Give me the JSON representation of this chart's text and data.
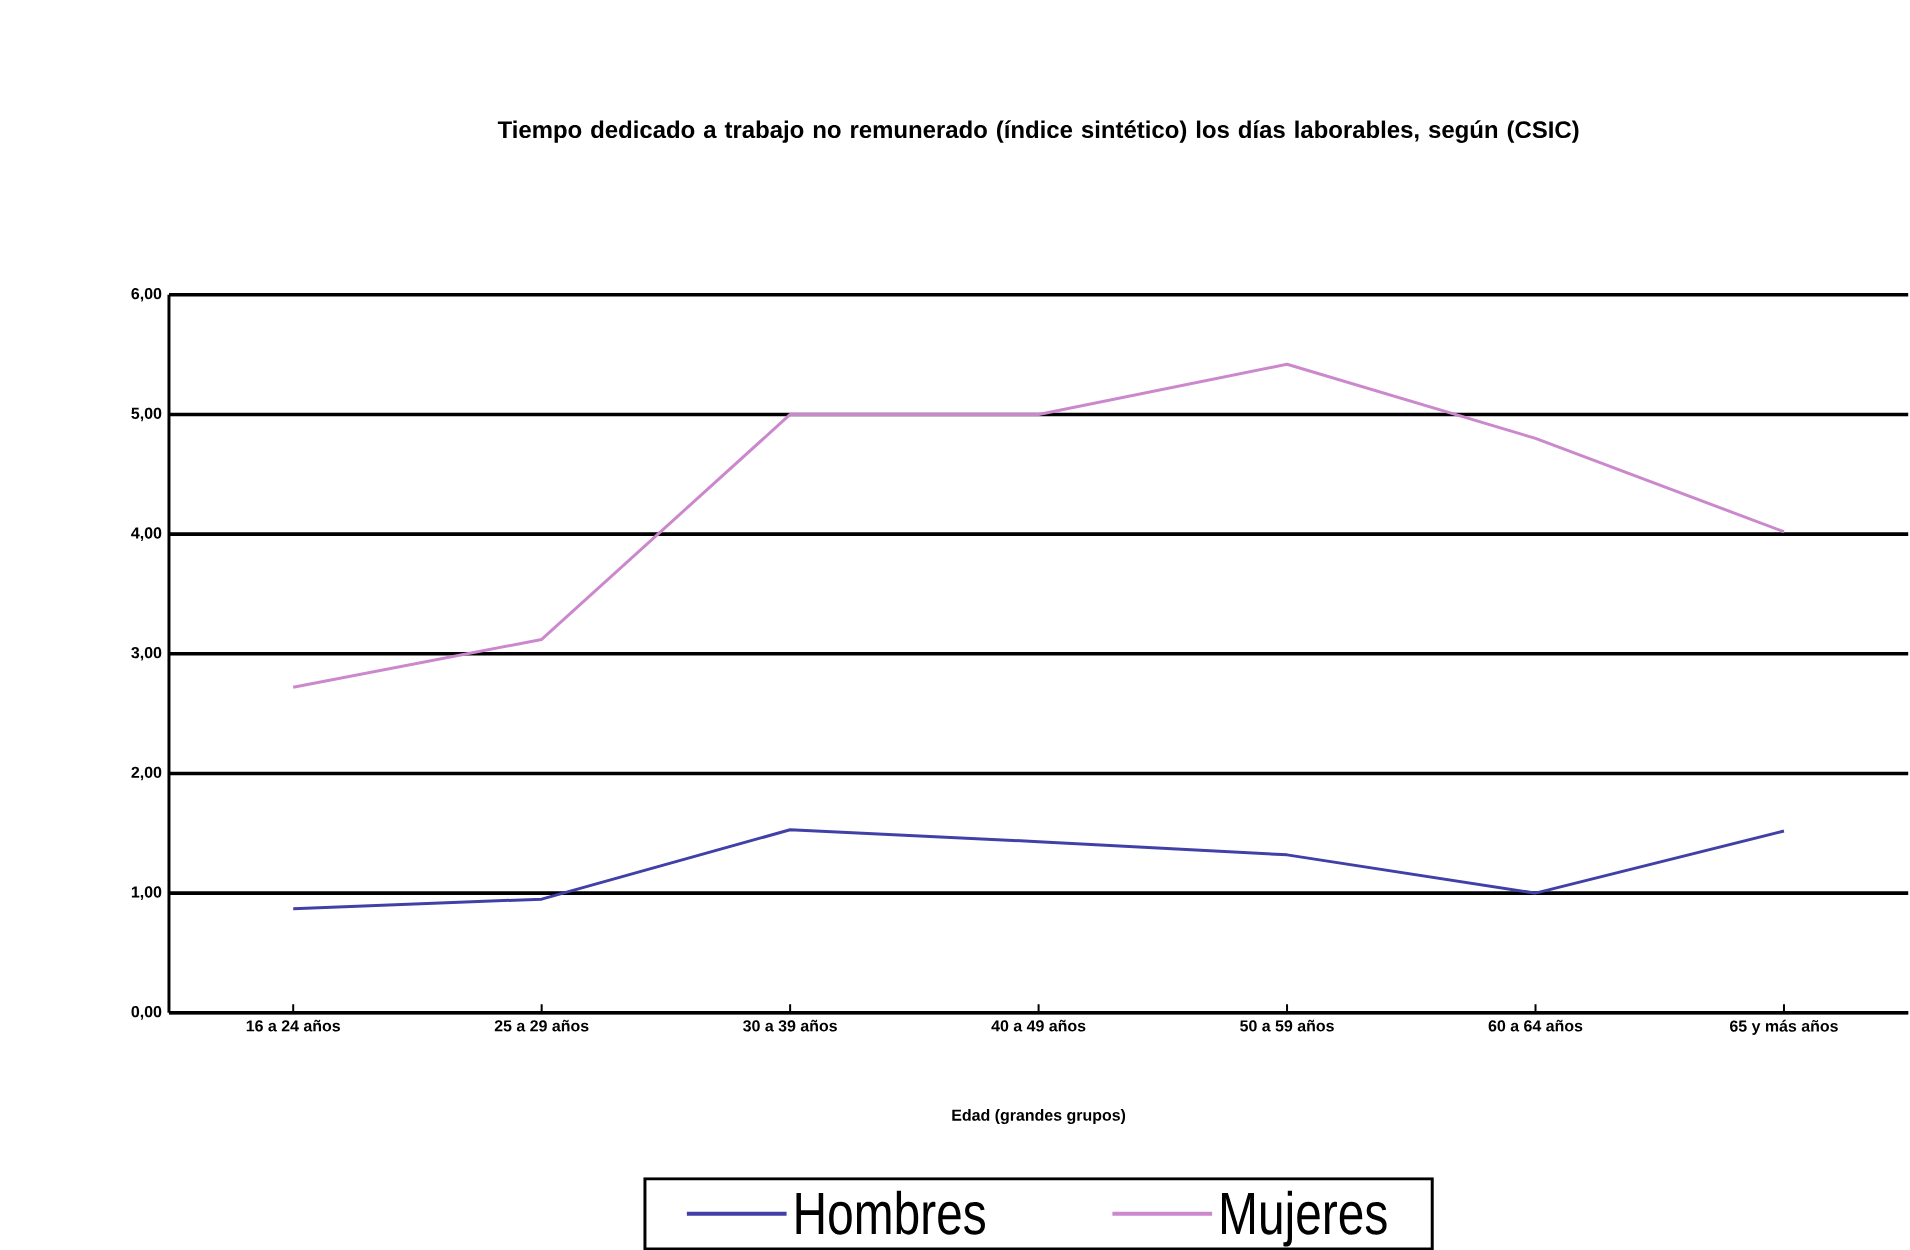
{
  "chart_data": {
    "type": "line",
    "title": "Tiempo dedicado a trabajo no remunerado (índice sintético) los días laborables, según (CSIC)",
    "xlabel": "Edad (grandes grupos)",
    "categories": [
      "16 a 24 años",
      "25 a 29 años",
      "30 a 39 años",
      "40 a 49 años",
      "50 a 59 años",
      "60 a 64 años",
      "65 y más años"
    ],
    "series": [
      {
        "name": "Hombres",
        "color": "#4040a8",
        "values": [
          0.87,
          0.95,
          1.53,
          1.43,
          1.32,
          1.0,
          1.52
        ]
      },
      {
        "name": "Mujeres",
        "color": "#cc88cc",
        "values": [
          2.72,
          3.12,
          5.0,
          5.0,
          5.42,
          4.8,
          4.02
        ]
      }
    ],
    "ylim": [
      0,
      6
    ],
    "yticks": [
      {
        "value": 0,
        "label": "0,00"
      },
      {
        "value": 1,
        "label": "1,00"
      },
      {
        "value": 2,
        "label": "2,00"
      },
      {
        "value": 3,
        "label": "3,00"
      },
      {
        "value": 4,
        "label": "4,00"
      },
      {
        "value": 5,
        "label": "5,00"
      },
      {
        "value": 6,
        "label": "6,00"
      }
    ],
    "grid": "y",
    "legend": "bottom",
    "marker": "none",
    "line_style": "solid"
  }
}
